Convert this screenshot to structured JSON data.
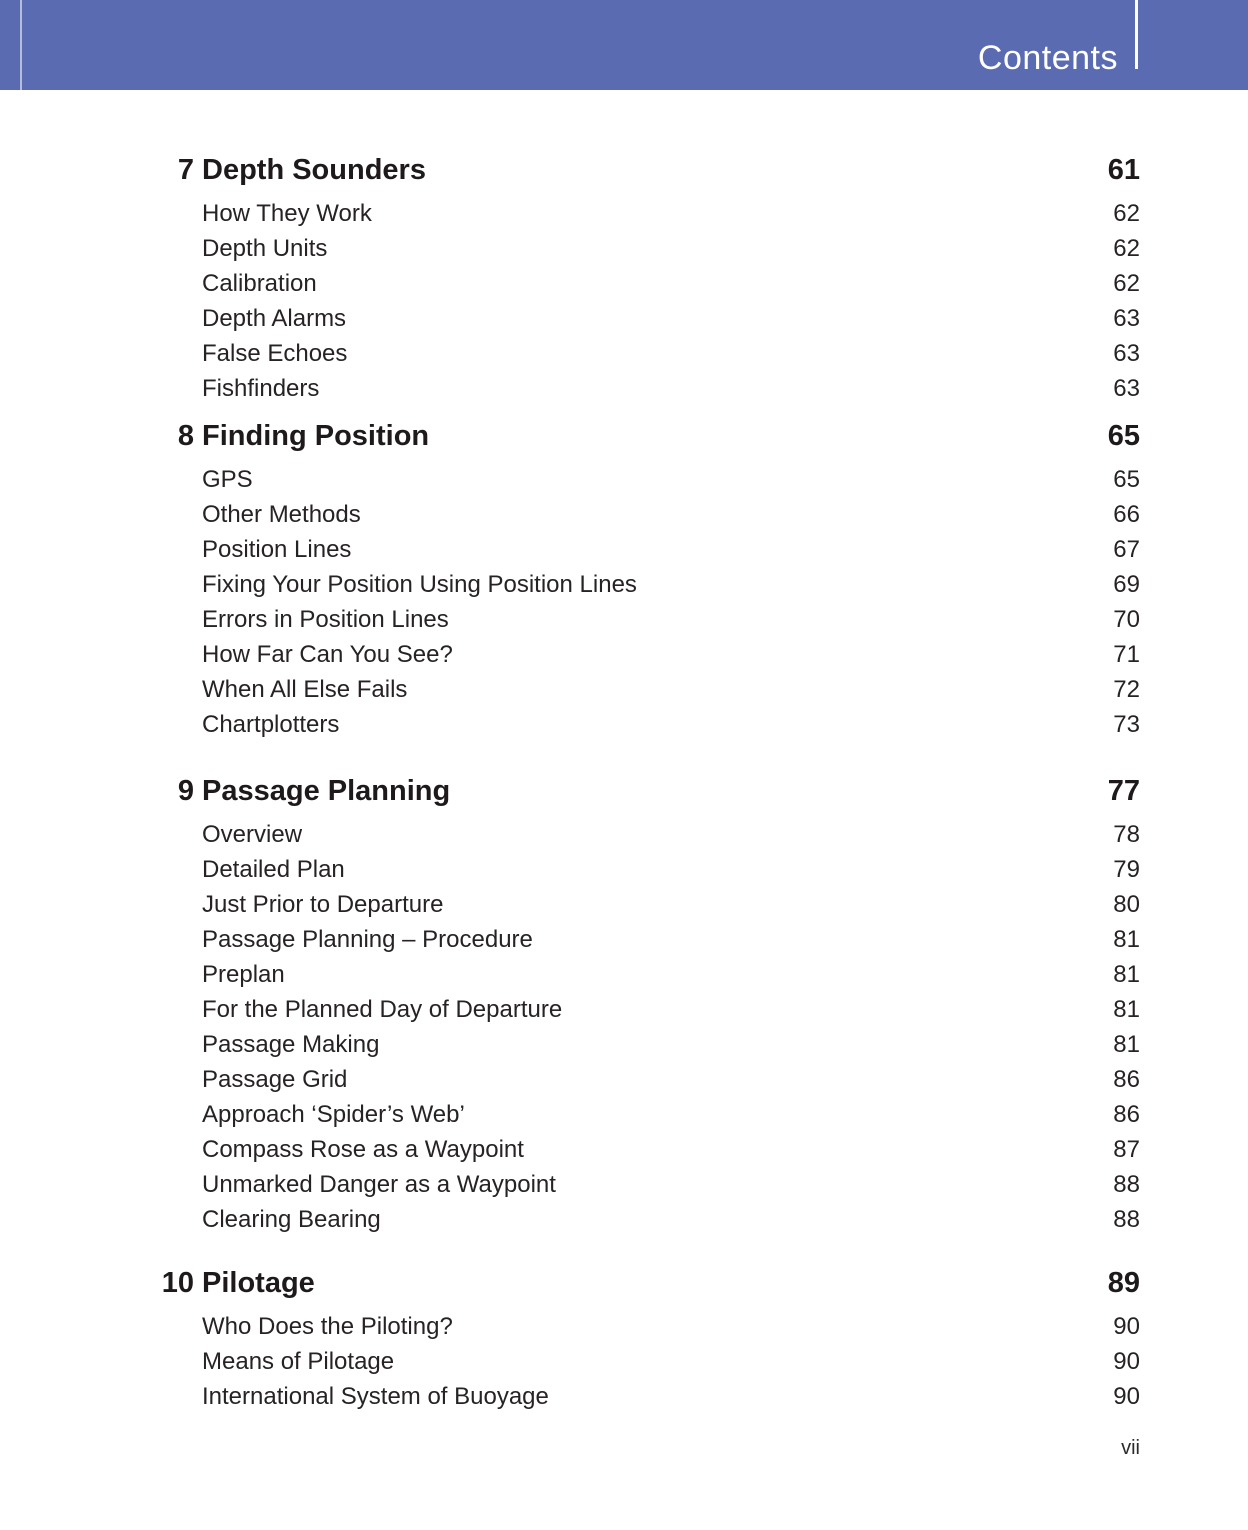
{
  "page": {
    "header_title": "Contents",
    "footer_page_number": "vii",
    "colors": {
      "header_bar": "#5b6bb2",
      "text": "#272324"
    }
  },
  "toc": {
    "chapters": [
      {
        "number": "7",
        "title": "Depth Sounders",
        "page": "61",
        "items": [
          {
            "label": "How They Work",
            "page": "62"
          },
          {
            "label": "Depth Units",
            "page": "62"
          },
          {
            "label": "Calibration",
            "page": "62"
          },
          {
            "label": "Depth Alarms",
            "page": "63"
          },
          {
            "label": "False Echoes",
            "page": "63"
          },
          {
            "label": "Fishfinders",
            "page": "63"
          }
        ]
      },
      {
        "number": "8",
        "title": "Finding Position",
        "page": "65",
        "items": [
          {
            "label": "GPS",
            "page": "65"
          },
          {
            "label": "Other Methods",
            "page": "66"
          },
          {
            "label": "Position Lines",
            "page": "67"
          },
          {
            "label": "Fixing Your Position Using Position Lines",
            "page": "69"
          },
          {
            "label": "Errors in Position Lines",
            "page": "70"
          },
          {
            "label": "How Far Can You See?",
            "page": "71"
          },
          {
            "label": "When All Else Fails",
            "page": "72"
          },
          {
            "label": "Chartplotters",
            "page": "73"
          }
        ]
      },
      {
        "number": "9",
        "title": "Passage Planning",
        "page": "77",
        "items": [
          {
            "label": "Overview",
            "page": "78"
          },
          {
            "label": "Detailed Plan",
            "page": "79"
          },
          {
            "label": "Just Prior to Departure",
            "page": "80"
          },
          {
            "label": "Passage Planning – Procedure",
            "page": "81"
          },
          {
            "label": "Preplan",
            "page": "81"
          },
          {
            "label": "For the Planned Day of Departure",
            "page": "81"
          },
          {
            "label": "Passage Making",
            "page": "81"
          },
          {
            "label": "Passage Grid",
            "page": "86"
          },
          {
            "label": "Approach ‘Spider’s Web’",
            "page": "86"
          },
          {
            "label": "Compass Rose as a Waypoint",
            "page": "87"
          },
          {
            "label": "Unmarked Danger as a Waypoint",
            "page": "88"
          },
          {
            "label": "Clearing Bearing",
            "page": "88"
          }
        ]
      },
      {
        "number": "10",
        "title": "Pilotage",
        "page": "89",
        "items": [
          {
            "label": "Who Does the Piloting?",
            "page": "90"
          },
          {
            "label": "Means of Pilotage",
            "page": "90"
          },
          {
            "label": "International System of Buoyage",
            "page": "90"
          }
        ]
      }
    ]
  }
}
